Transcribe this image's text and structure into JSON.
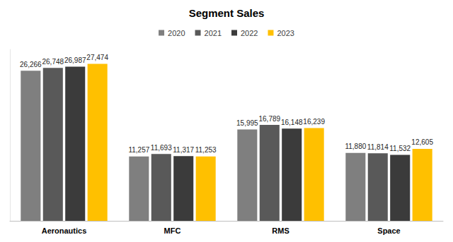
{
  "chart_data": {
    "type": "bar",
    "title": "Segment Sales",
    "categories": [
      "Aeronautics",
      "MFC",
      "RMS",
      "Space"
    ],
    "series": [
      {
        "name": "2020",
        "color": "#7f7f7f",
        "values": [
          26266,
          11257,
          15995,
          11880
        ],
        "value_labels": [
          "26,266",
          "11,257",
          "15,995",
          "11,880"
        ]
      },
      {
        "name": "2021",
        "color": "#595959",
        "values": [
          26748,
          11693,
          16789,
          11814
        ],
        "value_labels": [
          "26,748",
          "11,693",
          "16,789",
          "11,814"
        ]
      },
      {
        "name": "2022",
        "color": "#3b3b3b",
        "values": [
          26987,
          11317,
          16148,
          11532
        ],
        "value_labels": [
          "26,987",
          "11,317",
          "16,148",
          "11,532"
        ]
      },
      {
        "name": "2023",
        "color": "#ffc000",
        "values": [
          27474,
          11253,
          16239,
          12605
        ],
        "value_labels": [
          "27,474",
          "11,253",
          "16,239",
          "12,605"
        ]
      }
    ],
    "ylim": [
      0,
      30000
    ],
    "legend": "top",
    "grid": false,
    "data_labels": true,
    "tick_labels": "x"
  }
}
